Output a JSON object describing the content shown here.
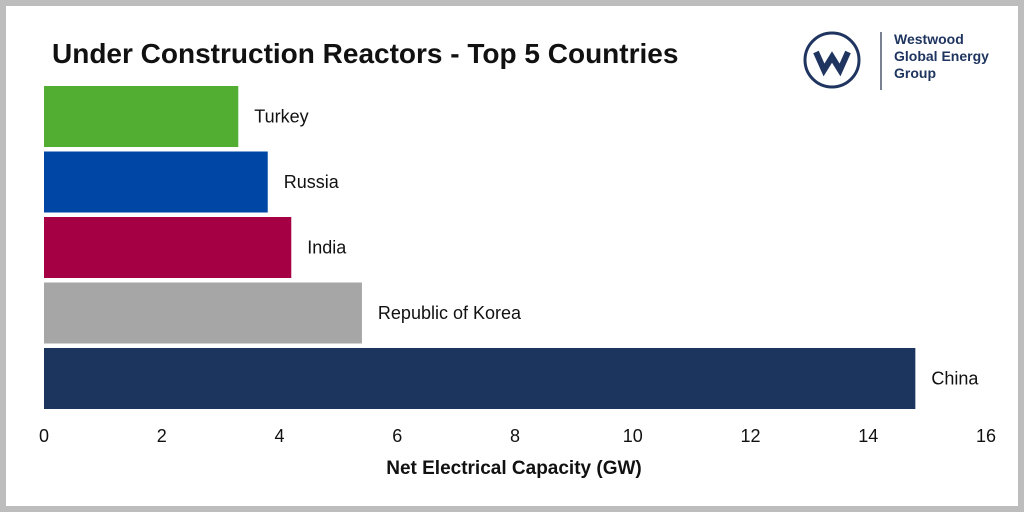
{
  "title": "Under Construction Reactors - Top 5 Countries",
  "logo": {
    "lines": [
      "Westwood",
      "Global Energy",
      "Group"
    ],
    "icon": "westwood-w-logo-icon",
    "color": "#1f3560"
  },
  "chart_data": {
    "type": "bar",
    "orientation": "horizontal",
    "title": "Under Construction Reactors - Top 5 Countries",
    "xlabel": "Net Electrical Capacity (GW)",
    "ylabel": "",
    "xlim": [
      0,
      16
    ],
    "xticks": [
      0,
      2,
      4,
      6,
      8,
      10,
      12,
      14,
      16
    ],
    "grid": false,
    "categories": [
      "Turkey",
      "Russia",
      "India",
      "Republic of Korea",
      "China"
    ],
    "values": [
      3.3,
      3.8,
      4.2,
      5.4,
      14.8
    ],
    "colors": [
      "#52ae32",
      "#0046a5",
      "#a50044",
      "#a6a6a6",
      "#1c355e"
    ]
  }
}
